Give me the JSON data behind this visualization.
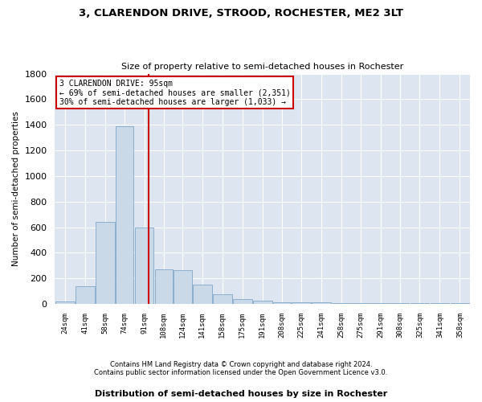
{
  "title": "3, CLARENDON DRIVE, STROOD, ROCHESTER, ME2 3LT",
  "subtitle": "Size of property relative to semi-detached houses in Rochester",
  "xlabel": "Distribution of semi-detached houses by size in Rochester",
  "ylabel": "Number of semi-detached properties",
  "property_size": 95,
  "annotation_line1": "3 CLARENDON DRIVE: 95sqm",
  "annotation_line2": "← 69% of semi-detached houses are smaller (2,351)",
  "annotation_line3": "30% of semi-detached houses are larger (1,033) →",
  "footnote1": "Contains HM Land Registry data © Crown copyright and database right 2024.",
  "footnote2": "Contains public sector information licensed under the Open Government Licence v3.0.",
  "bar_color": "#c9d9e8",
  "bar_edge_color": "#7fa8c9",
  "line_color": "#cc0000",
  "annotation_box_color": "#cc0000",
  "background_color": "#dde6f0",
  "categories": [
    "24sqm",
    "41sqm",
    "58sqm",
    "74sqm",
    "91sqm",
    "108sqm",
    "124sqm",
    "141sqm",
    "158sqm",
    "175sqm",
    "191sqm",
    "208sqm",
    "225sqm",
    "241sqm",
    "258sqm",
    "275sqm",
    "291sqm",
    "308sqm",
    "325sqm",
    "341sqm",
    "358sqm"
  ],
  "bin_edges": [
    15.5,
    32.5,
    49.5,
    66.5,
    82.5,
    99.5,
    115.5,
    131.5,
    148.5,
    165.5,
    182.5,
    199.5,
    215.5,
    232.5,
    249.5,
    265.5,
    282.5,
    299.5,
    315.5,
    332.5,
    349.5,
    366.5
  ],
  "values": [
    20,
    140,
    640,
    1390,
    600,
    270,
    265,
    150,
    75,
    40,
    25,
    15,
    10,
    10,
    5,
    5,
    5,
    5,
    5,
    5,
    5
  ],
  "ylim": [
    0,
    1800
  ],
  "yticks": [
    0,
    200,
    400,
    600,
    800,
    1000,
    1200,
    1400,
    1600,
    1800
  ]
}
